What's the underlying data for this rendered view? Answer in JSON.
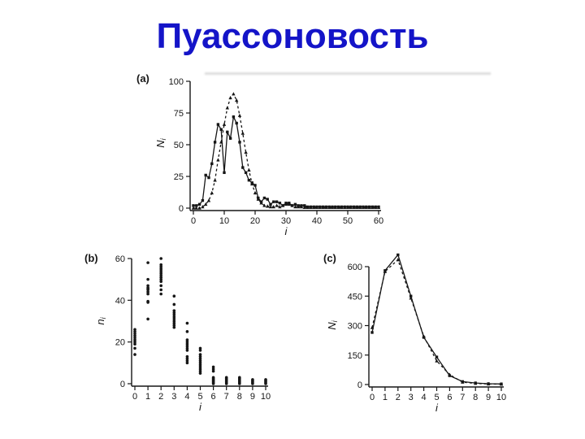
{
  "slide": {
    "title": "Пуассоновость",
    "title_color": "#1414c8",
    "background": "#ffffff",
    "ink_color": "#161616"
  },
  "chart_data": [
    {
      "id": "a",
      "type": "line",
      "panel_label": "(a)",
      "xlabel": "i",
      "ylabel": "N",
      "ylabel_sub": "i",
      "xlim": [
        0,
        60
      ],
      "ylim": [
        0,
        100
      ],
      "xticks": [
        0,
        10,
        20,
        30,
        40,
        50,
        60
      ],
      "yticks": [
        0,
        25,
        50,
        75,
        100
      ],
      "grid": false,
      "legend": "none",
      "x": [
        0,
        1,
        2,
        3,
        4,
        5,
        6,
        7,
        8,
        9,
        10,
        11,
        12,
        13,
        14,
        15,
        16,
        17,
        18,
        19,
        20,
        21,
        22,
        23,
        24,
        25,
        26,
        27,
        28,
        29,
        30,
        31,
        32,
        33,
        34,
        35,
        36,
        37,
        38,
        39,
        40,
        41,
        42,
        43,
        44,
        45,
        46,
        47,
        48,
        49,
        50,
        51,
        52,
        53,
        54,
        55,
        56,
        57,
        58,
        59,
        60
      ],
      "series": [
        {
          "name": "observed-solid-squares",
          "style": "solid",
          "marker": "square",
          "y": [
            2,
            2,
            3,
            6,
            26,
            24,
            35,
            52,
            66,
            62,
            28,
            60,
            55,
            72,
            67,
            52,
            32,
            28,
            22,
            20,
            18,
            8,
            5,
            8,
            7,
            3,
            5,
            5,
            4,
            2,
            4,
            4,
            2,
            3,
            2,
            2,
            2,
            1,
            1,
            1,
            1,
            1,
            1,
            1,
            1,
            1,
            1,
            1,
            1,
            1,
            1,
            1,
            1,
            1,
            1,
            1,
            1,
            1,
            1,
            1,
            1
          ]
        },
        {
          "name": "fit-dashed-triangles",
          "style": "dashed",
          "marker": "triangle",
          "y": [
            0,
            0,
            0,
            1,
            3,
            6,
            12,
            22,
            38,
            52,
            66,
            79,
            87,
            90,
            85,
            73,
            59,
            44,
            30,
            19,
            12,
            7,
            4,
            2,
            1.5,
            1,
            1,
            2,
            1,
            2,
            3,
            3,
            2,
            1,
            1,
            1,
            0.5,
            0.5,
            0.5,
            0.5,
            0.5,
            0.5,
            0.5,
            0.5,
            0.5,
            0.5,
            0.5,
            0.5,
            0.5,
            0.5,
            0.5,
            0.5,
            0.5,
            0.5,
            0.5,
            0.5,
            0.5,
            0.5,
            0.5,
            0.5,
            0.5
          ]
        }
      ]
    },
    {
      "id": "b",
      "type": "scatter",
      "panel_label": "(b)",
      "xlabel": "i",
      "ylabel": "n",
      "ylabel_sub": "i",
      "xlim": [
        0,
        10
      ],
      "ylim": [
        0,
        60
      ],
      "xticks": [
        0,
        1,
        2,
        3,
        4,
        5,
        6,
        7,
        8,
        9,
        10
      ],
      "yticks": [
        0,
        20,
        40,
        60
      ],
      "grid": false,
      "legend": "none",
      "points_by_i": [
        {
          "i": 0,
          "n": [
            14,
            17,
            19,
            20,
            21,
            22,
            23,
            24,
            25,
            26
          ]
        },
        {
          "i": 1,
          "n": [
            31,
            39,
            39.5,
            43,
            44,
            45,
            45.5,
            46,
            47,
            50,
            58
          ]
        },
        {
          "i": 2,
          "n": [
            43,
            45,
            47,
            49,
            50,
            51,
            52,
            53,
            54,
            55,
            56,
            57,
            60
          ]
        },
        {
          "i": 3,
          "n": [
            27,
            28,
            29,
            30,
            31,
            32,
            33,
            34,
            35,
            38,
            42
          ]
        },
        {
          "i": 4,
          "n": [
            10,
            11,
            12,
            13,
            16,
            17,
            18,
            19,
            20,
            21,
            25,
            29
          ]
        },
        {
          "i": 5,
          "n": [
            5,
            6,
            7,
            8,
            9,
            10,
            11,
            12,
            13,
            14,
            16,
            17
          ]
        },
        {
          "i": 6,
          "n": [
            0,
            0.5,
            1,
            1.5,
            2,
            2.5,
            3,
            6,
            7,
            8
          ]
        },
        {
          "i": 7,
          "n": [
            0,
            0.5,
            1,
            1.5,
            2,
            2.5,
            3
          ]
        },
        {
          "i": 8,
          "n": [
            0,
            0.5,
            1,
            1.5,
            2,
            2.5,
            3
          ]
        },
        {
          "i": 9,
          "n": [
            0,
            0.5,
            1,
            1.5,
            2
          ]
        },
        {
          "i": 10,
          "n": [
            0,
            0.5,
            1,
            1.5,
            2
          ]
        }
      ]
    },
    {
      "id": "c",
      "type": "line",
      "panel_label": "(c)",
      "xlabel": "i",
      "ylabel": "N",
      "ylabel_sub": "i",
      "xlim": [
        0,
        10
      ],
      "ylim": [
        0,
        600
      ],
      "xticks": [
        0,
        1,
        2,
        3,
        4,
        5,
        6,
        7,
        8,
        9,
        10
      ],
      "yticks": [
        0,
        150,
        300,
        450,
        600
      ],
      "grid": false,
      "legend": "none",
      "x": [
        0,
        1,
        2,
        3,
        4,
        5,
        6,
        7,
        8,
        9,
        10
      ],
      "series": [
        {
          "name": "observed-solid-squares",
          "style": "solid",
          "marker": "square",
          "y": [
            265,
            580,
            660,
            450,
            240,
            140,
            45,
            15,
            8,
            4,
            3
          ]
        },
        {
          "name": "fit-dashed-triangles",
          "style": "dashed",
          "marker": "triangle",
          "y": [
            290,
            575,
            635,
            440,
            245,
            120,
            50,
            12,
            6,
            3,
            2
          ]
        }
      ]
    }
  ]
}
